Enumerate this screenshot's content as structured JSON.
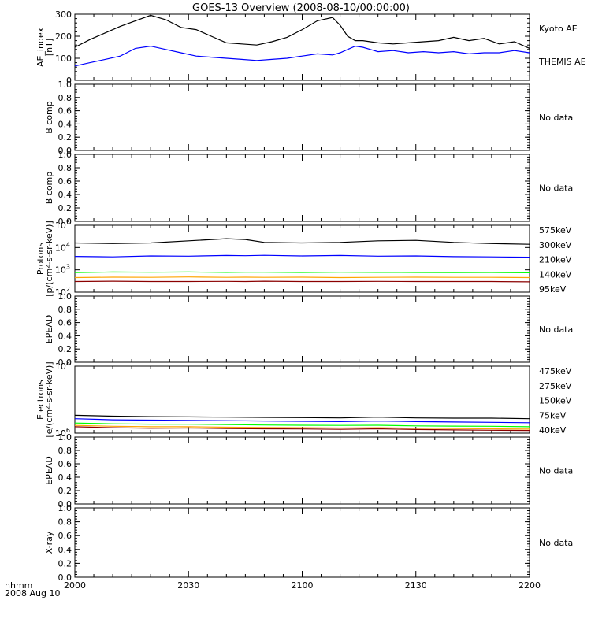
{
  "title": "GOES-13 Overview (2008-08-10/00:00:00)",
  "time_axis": {
    "corner_label_1": "hhmm",
    "corner_label_2": "2008 Aug 10",
    "ticks": [
      "2000",
      "2030",
      "2100",
      "2130",
      "2200"
    ],
    "range_minutes": [
      0,
      120
    ]
  },
  "no_data_text": "No data",
  "colors": {
    "black": "#000000",
    "blue": "#0000ff",
    "green": "#00ff00",
    "orange": "#ffa500",
    "darkred": "#8b0000"
  },
  "chart_data": [
    {
      "type": "line",
      "ylabel": [
        "AE_index",
        "[nT]"
      ],
      "ylim": [
        0,
        300
      ],
      "yticks": [
        "0",
        "100",
        "200",
        "300"
      ],
      "x_minutes": [
        0,
        4,
        8,
        12,
        16,
        20,
        24,
        28,
        32,
        36,
        40,
        44,
        48,
        52,
        56,
        60,
        64,
        68,
        70,
        72,
        74,
        76,
        78,
        80,
        84,
        88,
        92,
        96,
        100,
        104,
        108,
        112,
        116,
        120
      ],
      "series": [
        {
          "name": "Kyoto AE",
          "color": "black",
          "values": [
            150,
            185,
            215,
            245,
            270,
            295,
            275,
            240,
            230,
            200,
            170,
            165,
            160,
            175,
            195,
            230,
            270,
            285,
            250,
            200,
            180,
            180,
            175,
            170,
            165,
            170,
            175,
            180,
            195,
            180,
            190,
            165,
            175,
            145
          ]
        },
        {
          "name": "THEMIS AE",
          "color": "blue",
          "values": [
            65,
            80,
            95,
            110,
            145,
            155,
            140,
            125,
            110,
            105,
            100,
            95,
            90,
            95,
            100,
            110,
            120,
            115,
            125,
            140,
            155,
            150,
            140,
            130,
            135,
            125,
            130,
            125,
            130,
            120,
            125,
            125,
            135,
            125
          ]
        }
      ]
    },
    {
      "type": "line",
      "ylabel": [
        "B comp"
      ],
      "ylim": [
        0,
        1
      ],
      "yticks": [
        "0.0",
        "0.2",
        "0.4",
        "0.6",
        "0.8",
        "1.0"
      ],
      "no_data": true
    },
    {
      "type": "line",
      "ylabel": [
        "B comp"
      ],
      "ylim": [
        0,
        1
      ],
      "yticks": [
        "0.0",
        "0.2",
        "0.4",
        "0.6",
        "0.8",
        "1.0"
      ],
      "no_data": true
    },
    {
      "type": "line",
      "log_scale": true,
      "ylabel": [
        "Protons",
        "[p/(cm²-s-sr-keV)]"
      ],
      "ylim": [
        100,
        100000
      ],
      "yticks": [
        {
          "base": "10",
          "exp": "2"
        },
        {
          "base": "10",
          "exp": "3"
        },
        {
          "base": "10",
          "exp": "4"
        },
        {
          "base": "10",
          "exp": "5"
        }
      ],
      "x_minutes": [
        0,
        10,
        20,
        30,
        40,
        45,
        50,
        60,
        70,
        80,
        90,
        100,
        110,
        120
      ],
      "series": [
        {
          "name": "575keV",
          "color": "darkred",
          "values": [
            300,
            310,
            300,
            300,
            305,
            300,
            310,
            300,
            300,
            305,
            300,
            300,
            300,
            290
          ]
        },
        {
          "name": "300keV",
          "color": "orange",
          "values": [
            450,
            470,
            460,
            480,
            460,
            470,
            460,
            470,
            450,
            460,
            470,
            460,
            460,
            450
          ]
        },
        {
          "name": "210keV",
          "color": "green",
          "values": [
            750,
            800,
            780,
            800,
            770,
            780,
            790,
            760,
            780,
            770,
            760,
            750,
            760,
            740
          ]
        },
        {
          "name": "140keV",
          "color": "blue",
          "values": [
            4000,
            3800,
            4200,
            4100,
            4400,
            4300,
            4500,
            4200,
            4400,
            4100,
            4200,
            3900,
            3800,
            3700
          ]
        },
        {
          "name": "95keV",
          "color": "black",
          "values": [
            16000,
            15000,
            16000,
            20000,
            25000,
            23000,
            17000,
            16000,
            17000,
            20000,
            21000,
            17000,
            15000,
            14000
          ]
        }
      ]
    },
    {
      "type": "line",
      "ylabel": [
        "EPEAD"
      ],
      "ylim": [
        0,
        1
      ],
      "yticks": [
        "0.0",
        "0.2",
        "0.4",
        "0.6",
        "0.8",
        "1.0"
      ],
      "no_data": true
    },
    {
      "type": "line",
      "log_scale": true,
      "ylabel": [
        "Electrons",
        "[e/(cm²-s-sr-keV)]"
      ],
      "ylim": [
        1000000,
        100000000
      ],
      "yticks": [
        {
          "base": "10",
          "exp": "6"
        },
        {
          "base": "10",
          "exp": "8"
        }
      ],
      "x_minutes": [
        0,
        10,
        20,
        30,
        40,
        50,
        60,
        70,
        80,
        90,
        100,
        110,
        120
      ],
      "series": [
        {
          "name": "475keV",
          "color": "darkred",
          "values": [
            1550000.0,
            1450000.0,
            1400000.0,
            1420000.0,
            1380000.0,
            1350000.0,
            1330000.0,
            1300000.0,
            1350000.0,
            1280000.0,
            1250000.0,
            1220000.0,
            1200000.0
          ]
        },
        {
          "name": "275keV",
          "color": "orange",
          "values": [
            1700000.0,
            1600000.0,
            1550000.0,
            1550000.0,
            1500000.0,
            1480000.0,
            1450000.0,
            1420000.0,
            1450000.0,
            1400000.0,
            1380000.0,
            1350000.0,
            1320000.0
          ]
        },
        {
          "name": "150keV",
          "color": "green",
          "values": [
            2000000.0,
            1900000.0,
            1850000.0,
            1850000.0,
            1800000.0,
            1750000.0,
            1720000.0,
            1700000.0,
            1720000.0,
            1650000.0,
            1620000.0,
            1600000.0,
            1550000.0
          ]
        },
        {
          "name": "75keV",
          "color": "blue",
          "values": [
            2700000.0,
            2500000.0,
            2450000.0,
            2400000.0,
            2350000.0,
            2300000.0,
            2250000.0,
            2200000.0,
            2300000.0,
            2200000.0,
            2150000.0,
            2100000.0,
            2050000.0
          ]
        },
        {
          "name": "40keV",
          "color": "black",
          "values": [
            3400000.0,
            3200000.0,
            3100000.0,
            3050000.0,
            3000000.0,
            2950000.0,
            2900000.0,
            2850000.0,
            3000000.0,
            2850000.0,
            2800000.0,
            2800000.0,
            2700000.0
          ]
        }
      ]
    },
    {
      "type": "line",
      "ylabel": [
        "EPEAD"
      ],
      "ylim": [
        0,
        1
      ],
      "yticks": [
        "0.0",
        "0.2",
        "0.4",
        "0.6",
        "0.8",
        "1.0"
      ],
      "no_data": true
    },
    {
      "type": "line",
      "ylabel": [
        "X-ray"
      ],
      "ylim": [
        0,
        1
      ],
      "yticks": [
        "0.0",
        "0.2",
        "0.4",
        "0.6",
        "0.8",
        "1.0"
      ],
      "no_data": true
    }
  ]
}
